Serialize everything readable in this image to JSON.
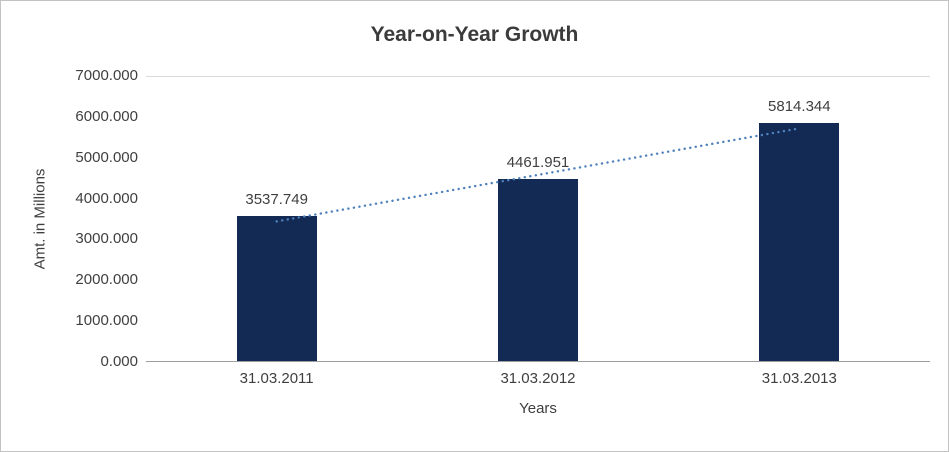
{
  "chart_data": {
    "type": "bar",
    "title": "Year-on-Year Growth",
    "categories": [
      "31.03.2011",
      "31.03.2012",
      "31.03.2013"
    ],
    "values": [
      3537.749,
      4461.951,
      5814.344
    ],
    "data_labels": [
      "3537.749",
      "4461.951",
      "5814.344"
    ],
    "xlabel": "Years",
    "ylabel": "Amt. in Millions",
    "ylim": [
      0,
      7000
    ],
    "ytick_step": 1000,
    "ytick_labels": [
      "0.000",
      "1000.000",
      "2000.000",
      "3000.000",
      "4000.000",
      "5000.000",
      "6000.000",
      "7000.000"
    ],
    "legend_position": "none",
    "grid": "top-line-only",
    "has_trendline": true,
    "trendline_style": "dotted",
    "colors": {
      "bar": "#132a54",
      "trendline": "#4f81bd",
      "title_text": "#3b3b3b",
      "axis_text": "#3f3f3f",
      "axis_line": "#9d9d9d",
      "gridline": "#d9d9d9",
      "border": "#c3c3c3"
    }
  }
}
